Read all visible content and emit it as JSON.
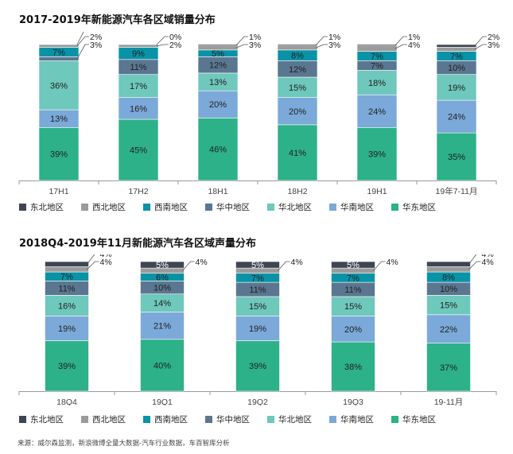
{
  "source": "来源：威尔森监测，新浪微博全量大数据-汽车行业数据，车百智库分析",
  "region_colors": [
    "#3e4653",
    "#9b9b9b",
    "#0a93a7",
    "#5b7690",
    "#6ec8bb",
    "#7ba9d9",
    "#2db188"
  ],
  "chart_data": [
    {
      "type": "bar",
      "stacked": true,
      "title": "2017-2019年新能源汽车各区域销量分布",
      "categories": [
        "17H1",
        "17H2",
        "18H1",
        "18H2",
        "19H1",
        "19年7-11月"
      ],
      "series": [
        {
          "name": "东北地区",
          "values": [
            0,
            0,
            1,
            1,
            1,
            2
          ]
        },
        {
          "name": "西北地区",
          "values": [
            2,
            2,
            3,
            3,
            4,
            3
          ]
        },
        {
          "name": "西南地区",
          "values": [
            7,
            9,
            5,
            8,
            7,
            7
          ]
        },
        {
          "name": "华中地区",
          "values": [
            3,
            11,
            12,
            12,
            7,
            10
          ]
        },
        {
          "name": "华北地区",
          "values": [
            36,
            17,
            13,
            15,
            18,
            19
          ]
        },
        {
          "name": "华南地区",
          "values": [
            13,
            16,
            20,
            20,
            24,
            24
          ]
        },
        {
          "name": "华东地区",
          "values": [
            39,
            45,
            46,
            41,
            39,
            35
          ]
        }
      ],
      "value_suffix": "%",
      "legend_position": "bottom",
      "grid": false
    },
    {
      "type": "bar",
      "stacked": true,
      "title": "2018Q4-2019年11月新能源汽车各区域声量分布",
      "categories": [
        "18Q4",
        "19Q1",
        "19Q2",
        "19Q3",
        "19-11月"
      ],
      "series": [
        {
          "name": "东北地区",
          "values": [
            4,
            5,
            5,
            5,
            4
          ]
        },
        {
          "name": "西北地区",
          "values": [
            4,
            4,
            4,
            4,
            4
          ]
        },
        {
          "name": "西南地区",
          "values": [
            7,
            6,
            7,
            7,
            8
          ]
        },
        {
          "name": "华中地区",
          "values": [
            11,
            10,
            11,
            11,
            10
          ]
        },
        {
          "name": "华北地区",
          "values": [
            16,
            14,
            15,
            15,
            15
          ]
        },
        {
          "name": "华南地区",
          "values": [
            19,
            21,
            19,
            20,
            22
          ]
        },
        {
          "name": "华东地区",
          "values": [
            39,
            40,
            39,
            38,
            37
          ]
        }
      ],
      "value_suffix": "%",
      "legend_position": "bottom",
      "grid": false
    }
  ]
}
